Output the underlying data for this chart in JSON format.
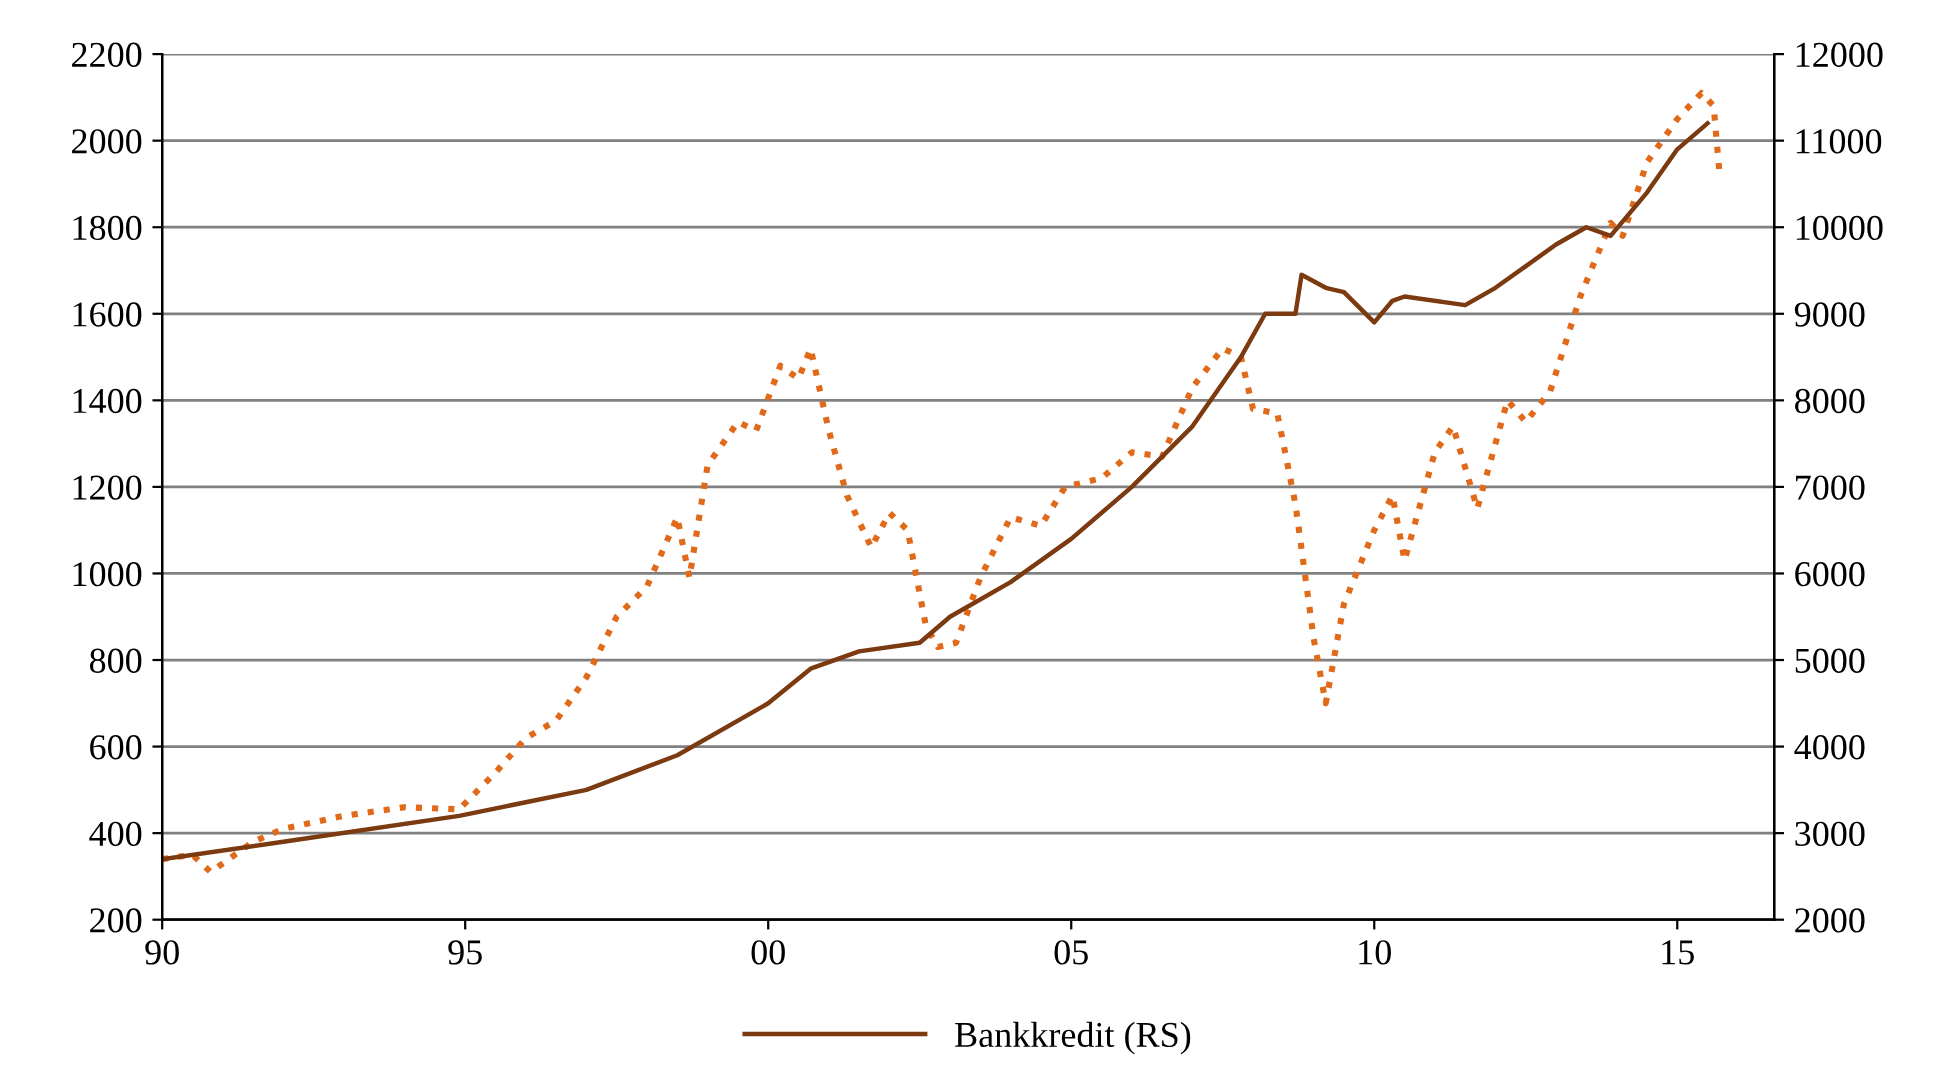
{
  "chart_data": {
    "type": "line",
    "legend": "bottom",
    "grid": "y",
    "xlim": [
      1990,
      2016.6
    ],
    "xticks": [
      {
        "value": 1990,
        "label": "90"
      },
      {
        "value": 1995,
        "label": "95"
      },
      {
        "value": 2000,
        "label": "00"
      },
      {
        "value": 2005,
        "label": "05"
      },
      {
        "value": 2010,
        "label": "10"
      },
      {
        "value": 2015,
        "label": "15"
      }
    ],
    "ylim": [
      200,
      2200
    ],
    "yticks": [
      200,
      400,
      600,
      800,
      1000,
      1200,
      1400,
      1600,
      1800,
      2000,
      2200
    ],
    "y2lim": [
      2000,
      12000
    ],
    "y2ticks": [
      2000,
      3000,
      4000,
      5000,
      6000,
      7000,
      8000,
      9000,
      10000,
      11000,
      12000
    ],
    "series": [
      {
        "color": "#e06a1a",
        "line_style": "dotted",
        "x": [
          1990,
          1990.5,
          1990.8,
          1991,
          1991.5,
          1992,
          1993,
          1994,
          1994.9,
          1995.5,
          1996,
          1996.5,
          1997,
          1997.5,
          1998,
          1998.5,
          1998.7,
          1999,
          1999.5,
          1999.8,
          2000.2,
          2000.5,
          2000.7,
          2001,
          2001.3,
          2001.7,
          2002,
          2002.3,
          2002.6,
          2002.8,
          2003.1,
          2003.5,
          2004,
          2004.5,
          2004.9,
          2005.5,
          2006,
          2006.5,
          2007,
          2007.5,
          2007.8,
          2008,
          2008.4,
          2008.7,
          2009.0,
          2009.2,
          2009.5,
          2010,
          2010.3,
          2010.5,
          2011.0,
          2011.3,
          2011.7,
          2012.2,
          2012.5,
          2012.9,
          2013.4,
          2013.9,
          2014.1,
          2014.5,
          2015,
          2015.4,
          2015.6,
          2015.7
        ],
        "values": [
          340,
          350,
          310,
          330,
          380,
          410,
          440,
          460,
          455,
          540,
          620,
          660,
          760,
          900,
          970,
          1130,
          990,
          1250,
          1350,
          1330,
          1480,
          1450,
          1520,
          1330,
          1180,
          1060,
          1140,
          1100,
          880,
          830,
          840,
          990,
          1130,
          1110,
          1200,
          1220,
          1280,
          1270,
          1430,
          1520,
          1500,
          1380,
          1370,
          1160,
          850,
          700,
          930,
          1100,
          1180,
          1030,
          1280,
          1340,
          1150,
          1400,
          1350,
          1420,
          1640,
          1810,
          1780,
          1950,
          2050,
          2110,
          2080,
          1920
        ]
      },
      {
        "name": "Bankkredit (RS)",
        "color": "#7b3a10",
        "line_style": "solid",
        "axis": "y2",
        "x": [
          1990,
          1992,
          1994.9,
          1997,
          1998.5,
          2000,
          2000.7,
          2001.5,
          2002.5,
          2003,
          2004,
          2005,
          2006,
          2007,
          2007.8,
          2008.2,
          2008.7,
          2008.8,
          2009.2,
          2009.5,
          2010,
          2010.3,
          2010.5,
          2011.5,
          2012,
          2013,
          2013.5,
          2013.9,
          2014.5,
          2015,
          2015.5
        ],
        "values": [
          2700,
          2900,
          3200,
          3500,
          3900,
          4500,
          4900,
          5100,
          5200,
          5500,
          5900,
          6400,
          7000,
          7700,
          8500,
          9000,
          9000,
          9450,
          9300,
          9250,
          8900,
          9150,
          9200,
          9100,
          9300,
          9800,
          10000,
          9900,
          10400,
          10900,
          11200
        ]
      }
    ]
  }
}
